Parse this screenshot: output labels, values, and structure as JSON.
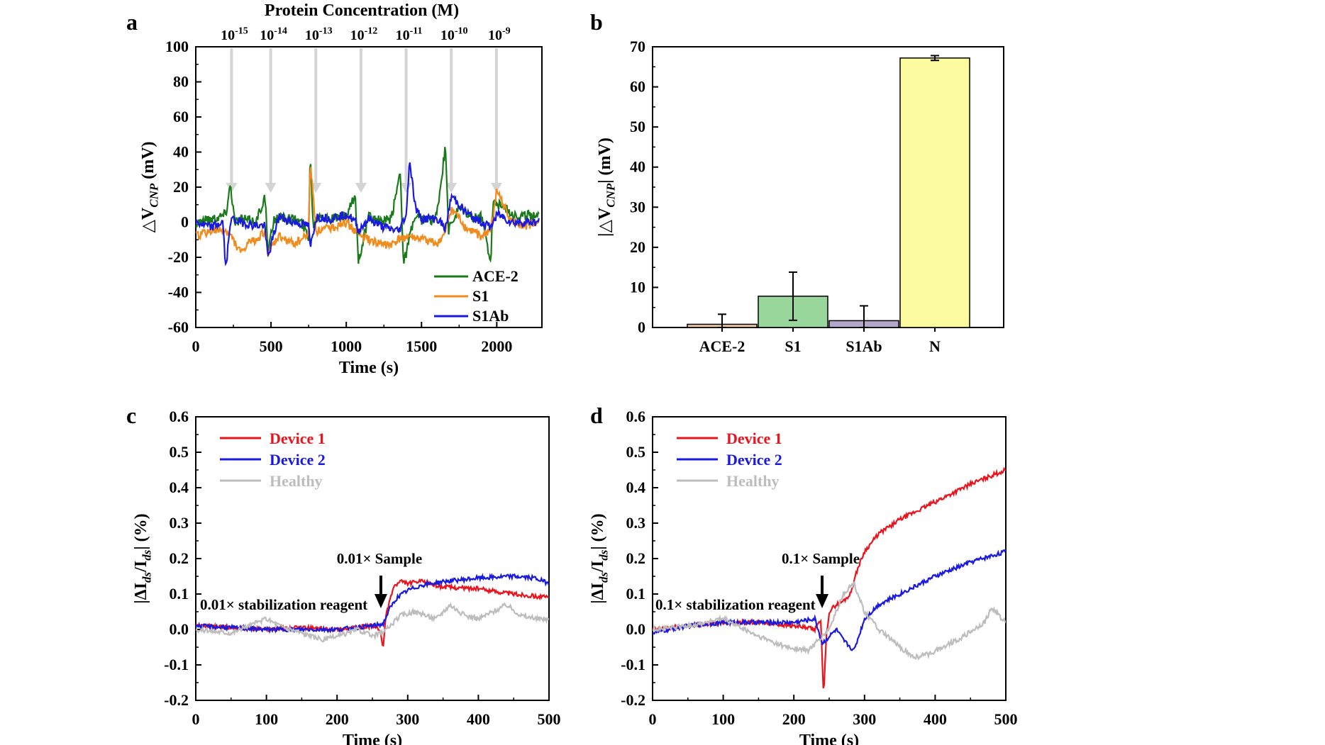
{
  "chart_data": [
    {
      "panel": "a",
      "type": "line",
      "title": "Protein Concentration (M)",
      "xlabel": "Time (s)",
      "ylabel": "△V_CNP (mV)",
      "xlim": [
        0,
        2300
      ],
      "ylim": [
        -60,
        100
      ],
      "xticks": [
        0,
        500,
        1000,
        1500,
        2000
      ],
      "yticks": [
        -60,
        -40,
        -20,
        0,
        20,
        40,
        60,
        80,
        100
      ],
      "annotations": [
        {
          "label": "10^-15",
          "x": 200
        },
        {
          "label": "10^-14",
          "x": 460
        },
        {
          "label": "10^-13",
          "x": 760
        },
        {
          "label": "10^-12",
          "x": 1060
        },
        {
          "label": "10^-11",
          "x": 1360
        },
        {
          "label": "10^-10",
          "x": 1660
        },
        {
          "label": "10^-9",
          "x": 1960
        }
      ],
      "series": [
        {
          "name": "ACE-2",
          "color": "#1a7a1a",
          "x": [
            0,
            100,
            150,
            200,
            230,
            260,
            300,
            400,
            460,
            480,
            520,
            600,
            700,
            750,
            760,
            780,
            820,
            900,
            1000,
            1060,
            1080,
            1150,
            1250,
            1300,
            1360,
            1380,
            1450,
            1550,
            1600,
            1660,
            1680,
            1750,
            1850,
            1900,
            1960,
            1975,
            2050,
            2150,
            2280
          ],
          "y": [
            0,
            2,
            3,
            5,
            22,
            0,
            2,
            0,
            15,
            -18,
            2,
            3,
            0,
            -8,
            40,
            -2,
            5,
            2,
            3,
            15,
            -22,
            3,
            0,
            2,
            30,
            -24,
            2,
            1,
            3,
            43,
            -5,
            8,
            2,
            3,
            -22,
            12,
            8,
            3,
            5
          ]
        },
        {
          "name": "S1",
          "color": "#f08c1e",
          "x": [
            0,
            100,
            200,
            250,
            300,
            350,
            400,
            460,
            480,
            550,
            650,
            700,
            750,
            760,
            800,
            900,
            1000,
            1060,
            1100,
            1200,
            1300,
            1350,
            1400,
            1500,
            1600,
            1650,
            1700,
            1800,
            1900,
            1960,
            2000,
            2100,
            2200,
            2280
          ],
          "y": [
            -8,
            -5,
            -5,
            -10,
            -18,
            -12,
            -10,
            -5,
            -18,
            -8,
            -12,
            -10,
            -6,
            35,
            -5,
            -3,
            0,
            -5,
            -8,
            -12,
            -13,
            -10,
            -8,
            -10,
            -12,
            -8,
            8,
            -4,
            -8,
            -5,
            18,
            0,
            -2,
            0
          ]
        },
        {
          "name": "S1Ab",
          "color": "#1a1adf",
          "x": [
            0,
            100,
            180,
            200,
            230,
            300,
            400,
            460,
            480,
            550,
            650,
            750,
            760,
            800,
            900,
            1000,
            1060,
            1080,
            1150,
            1250,
            1350,
            1400,
            1420,
            1460,
            1500,
            1600,
            1660,
            1700,
            1800,
            1900,
            1960,
            2000,
            2100,
            2280
          ],
          "y": [
            0,
            -3,
            0,
            -28,
            2,
            0,
            -2,
            -2,
            -20,
            3,
            0,
            -2,
            -15,
            3,
            2,
            5,
            0,
            -5,
            2,
            -3,
            -5,
            5,
            36,
            8,
            2,
            2,
            -3,
            15,
            5,
            0,
            -3,
            5,
            0,
            0
          ]
        }
      ],
      "legend": {
        "location": "bottom-right",
        "entries": [
          "ACE-2",
          "S1",
          "S1Ab"
        ]
      }
    },
    {
      "panel": "b",
      "type": "bar",
      "xlabel": "",
      "ylabel": "|△V_CNP| (mV)",
      "ylim": [
        0,
        70
      ],
      "yticks": [
        0,
        10,
        20,
        30,
        40,
        50,
        60,
        70
      ],
      "categories": [
        "ACE-2",
        "S1",
        "S1Ab",
        "N"
      ],
      "values": [
        0.8,
        7.8,
        1.7,
        67.2
      ],
      "errors": [
        2.5,
        6.0,
        3.7,
        0.6
      ],
      "colors": [
        "#e8c9a4",
        "#99d69c",
        "#b3a8c9",
        "#fdfba0"
      ]
    },
    {
      "panel": "c",
      "type": "line",
      "xlabel": "Time (s)",
      "ylabel": "|ΔI_ds/I_ds| (%)",
      "xlim": [
        0,
        500
      ],
      "ylim": [
        -0.2,
        0.6
      ],
      "xticks": [
        0,
        100,
        200,
        300,
        400,
        500
      ],
      "yticks": [
        -0.2,
        -0.1,
        0.0,
        0.1,
        0.2,
        0.3,
        0.4,
        0.5,
        0.6
      ],
      "annotations": [
        {
          "label": "0.01× stabilization reagent"
        },
        {
          "label": "0.01× Sample",
          "x": 262
        }
      ],
      "series": [
        {
          "name": "Device 1",
          "color": "#e8141e",
          "x": [
            0,
            50,
            100,
            150,
            200,
            250,
            260,
            265,
            270,
            280,
            290,
            300,
            320,
            350,
            400,
            450,
            500
          ],
          "y": [
            0.01,
            0.005,
            0.0,
            0.005,
            0.0,
            0.01,
            0.0,
            -0.05,
            0.05,
            0.12,
            0.135,
            0.13,
            0.135,
            0.12,
            0.115,
            0.1,
            0.09
          ]
        },
        {
          "name": "Device 2",
          "color": "#1a1adf",
          "x": [
            0,
            50,
            100,
            150,
            200,
            250,
            265,
            275,
            285,
            300,
            320,
            350,
            400,
            450,
            480,
            500
          ],
          "y": [
            0.01,
            0.005,
            0.0,
            0.0,
            0.0,
            0.01,
            0.015,
            0.06,
            0.09,
            0.11,
            0.125,
            0.135,
            0.145,
            0.15,
            0.145,
            0.13
          ]
        },
        {
          "name": "Healthy",
          "color": "#bdbdbd",
          "x": [
            0,
            50,
            100,
            120,
            150,
            180,
            200,
            230,
            250,
            270,
            290,
            310,
            340,
            360,
            380,
            400,
            420,
            440,
            460,
            480,
            500
          ],
          "y": [
            0.0,
            -0.01,
            0.03,
            0.01,
            -0.01,
            -0.03,
            -0.02,
            0.0,
            -0.02,
            0.0,
            0.04,
            0.05,
            0.03,
            0.07,
            0.04,
            0.03,
            0.05,
            0.07,
            0.04,
            0.03,
            0.03
          ]
        }
      ],
      "legend": {
        "location": "top-left",
        "entries": [
          "Device 1",
          "Device 2",
          "Healthy"
        ]
      }
    },
    {
      "panel": "d",
      "type": "line",
      "xlabel": "Time (s)",
      "ylabel": "|ΔI_ds/I_ds| (%)",
      "xlim": [
        0,
        500
      ],
      "ylim": [
        -0.2,
        0.6
      ],
      "xticks": [
        0,
        100,
        200,
        300,
        400,
        500
      ],
      "yticks": [
        -0.2,
        -0.1,
        0.0,
        0.1,
        0.2,
        0.3,
        0.4,
        0.5,
        0.6
      ],
      "annotations": [
        {
          "label": "0.1× stabilization reagent"
        },
        {
          "label": "0.1× Sample",
          "x": 240
        }
      ],
      "series": [
        {
          "name": "Device 1",
          "color": "#e8141e",
          "x": [
            0,
            50,
            100,
            150,
            200,
            230,
            238,
            242,
            246,
            250,
            260,
            270,
            280,
            290,
            300,
            320,
            350,
            400,
            450,
            500
          ],
          "y": [
            0.0,
            0.01,
            0.02,
            0.02,
            0.01,
            0.0,
            0.03,
            -0.19,
            -0.02,
            0.05,
            0.07,
            0.08,
            0.1,
            0.17,
            0.22,
            0.27,
            0.31,
            0.36,
            0.41,
            0.45
          ]
        },
        {
          "name": "Device 2",
          "color": "#1a1adf",
          "x": [
            0,
            50,
            100,
            150,
            200,
            230,
            240,
            250,
            260,
            270,
            285,
            300,
            320,
            350,
            400,
            450,
            500
          ],
          "y": [
            -0.01,
            0.01,
            0.02,
            0.02,
            0.02,
            0.03,
            -0.04,
            -0.02,
            0.0,
            -0.03,
            -0.06,
            0.03,
            0.07,
            0.1,
            0.15,
            0.19,
            0.22
          ]
        },
        {
          "name": "Healthy",
          "color": "#bdbdbd",
          "x": [
            0,
            50,
            100,
            150,
            190,
            220,
            250,
            270,
            285,
            300,
            320,
            350,
            370,
            390,
            410,
            440,
            470,
            480,
            500
          ],
          "y": [
            0.0,
            0.01,
            0.03,
            -0.02,
            -0.05,
            -0.06,
            0.0,
            0.1,
            0.13,
            0.05,
            0.0,
            -0.05,
            -0.08,
            -0.07,
            -0.05,
            -0.02,
            0.02,
            0.06,
            0.02
          ]
        }
      ],
      "legend": {
        "location": "top-left",
        "entries": [
          "Device 1",
          "Device 2",
          "Healthy"
        ]
      }
    }
  ]
}
